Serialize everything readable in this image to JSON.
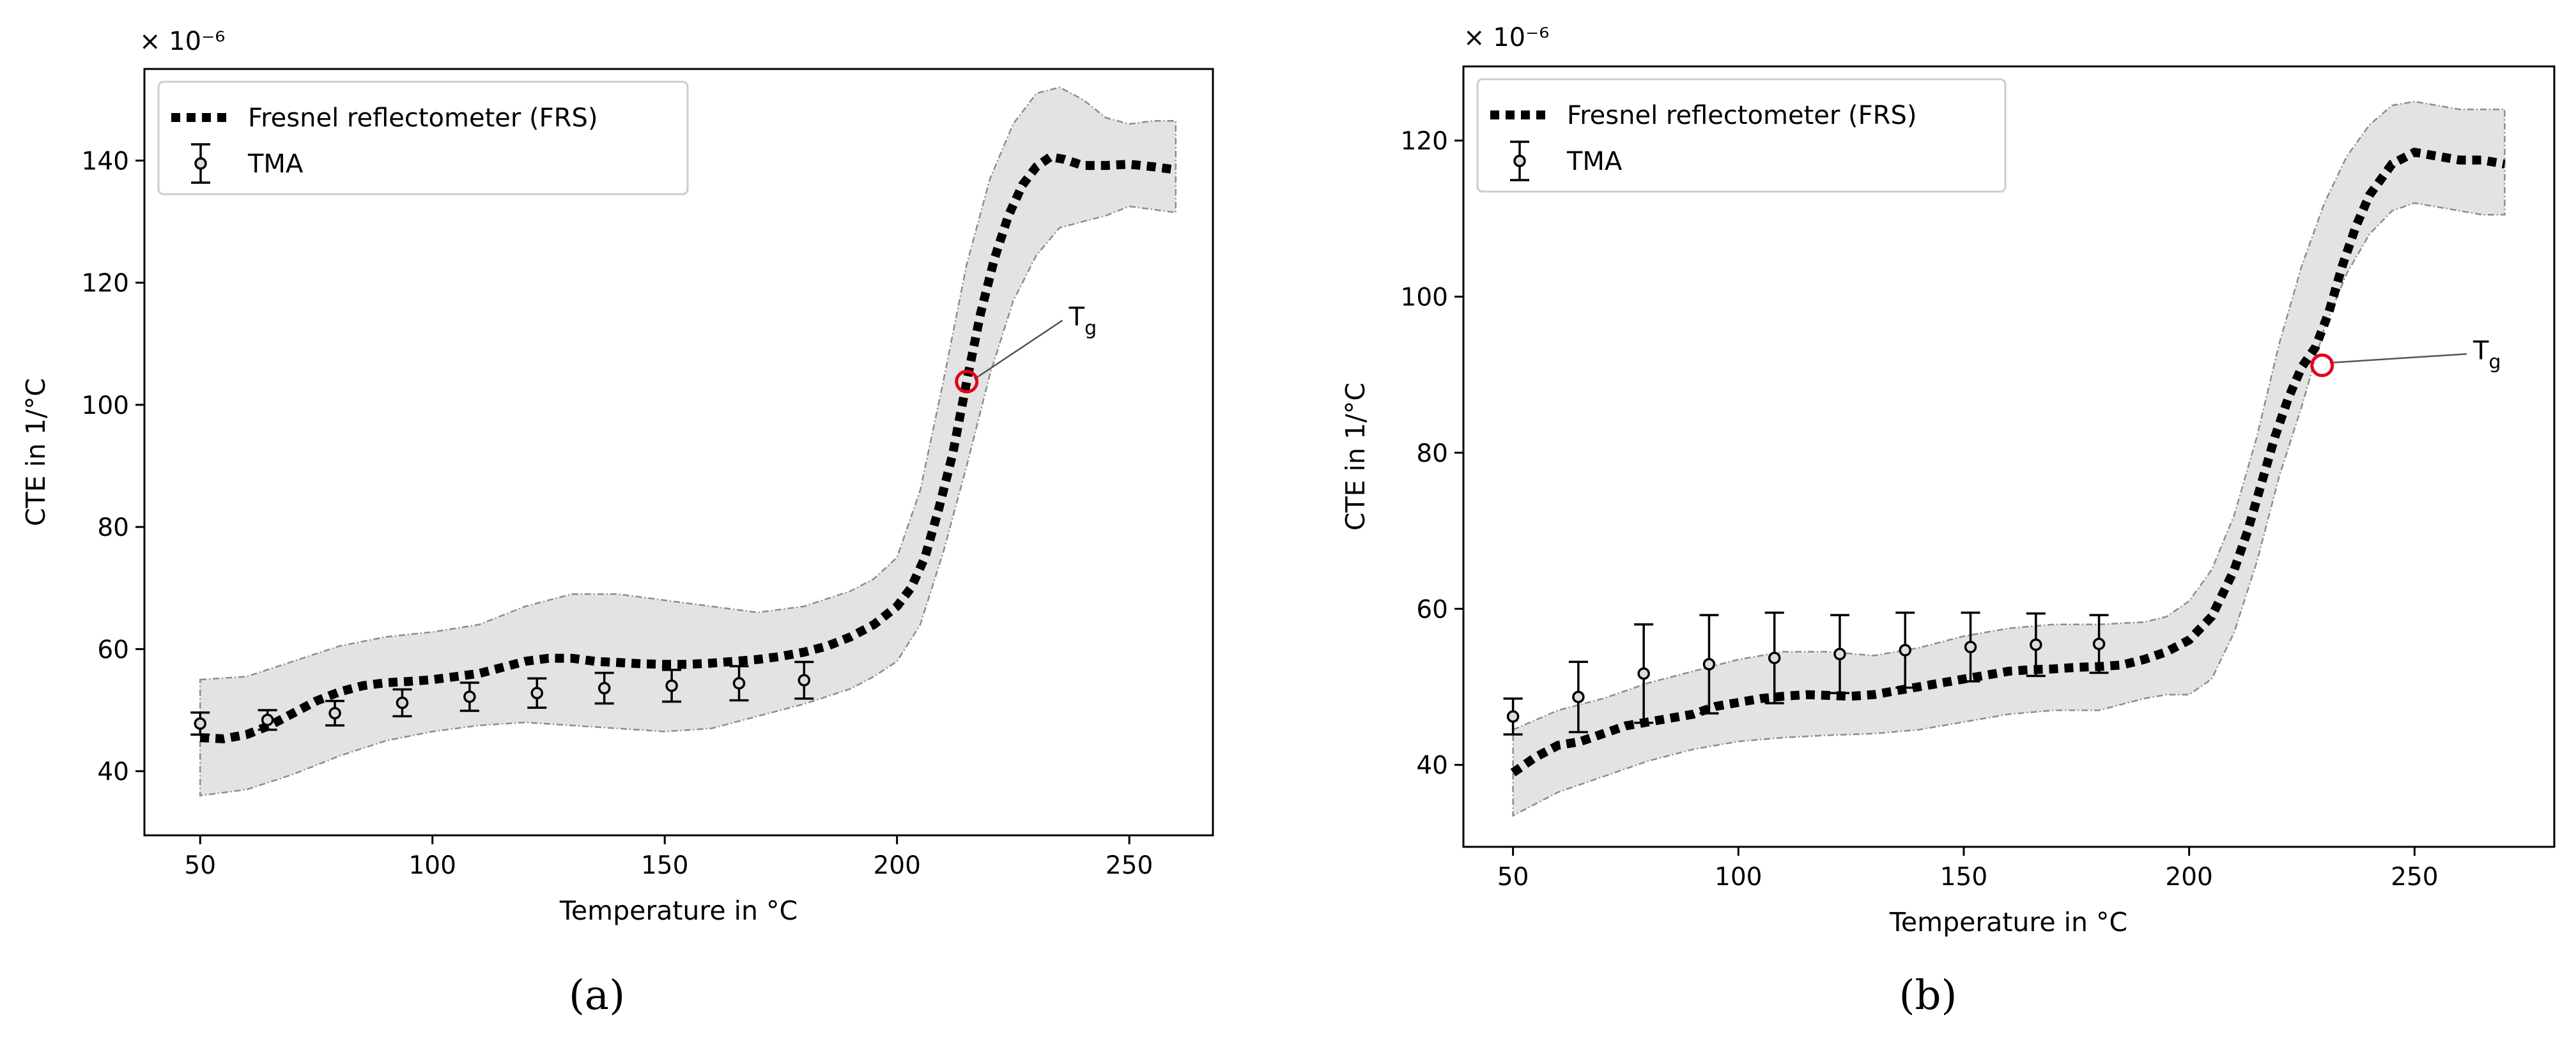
{
  "chart_data": [
    {
      "panel": "a",
      "caption": "(a)",
      "type": "line",
      "xlabel": "Temperature in °C",
      "ylabel": "CTE in 1/°C",
      "scale_label": "× 10⁻⁶",
      "xlim": [
        38,
        268
      ],
      "ylim": [
        29.5,
        155
      ],
      "xticks": [
        50,
        100,
        150,
        200,
        250
      ],
      "yticks": [
        40,
        60,
        80,
        100,
        120,
        140
      ],
      "legend": {
        "position": "top-left",
        "entries": [
          "Fresnel reflectometer (FRS)",
          "TMA"
        ]
      },
      "series": [
        {
          "name": "Fresnel reflectometer (FRS)",
          "style": "dotted",
          "x": [
            50,
            55,
            60,
            65,
            70,
            75,
            80,
            85,
            90,
            95,
            100,
            105,
            110,
            115,
            120,
            125,
            130,
            135,
            140,
            145,
            150,
            155,
            160,
            165,
            170,
            175,
            180,
            185,
            190,
            195,
            200,
            203,
            206,
            209,
            212,
            215,
            218,
            221,
            224,
            227,
            230,
            233,
            236,
            240,
            245,
            250,
            255,
            260
          ],
          "y": [
            45.5,
            45.3,
            46.0,
            47.5,
            49.5,
            51.5,
            53.0,
            54.0,
            54.5,
            54.7,
            55.0,
            55.5,
            56.0,
            57.0,
            58.0,
            58.5,
            58.5,
            58.0,
            57.8,
            57.6,
            57.5,
            57.5,
            57.7,
            58.0,
            58.3,
            58.8,
            59.5,
            60.5,
            62.0,
            64.0,
            67.0,
            70.0,
            75.0,
            83.0,
            92.0,
            103.8,
            115.0,
            124.0,
            131.0,
            136.0,
            139.0,
            140.6,
            140.2,
            139.2,
            139.2,
            139.4,
            139.0,
            138.5
          ]
        },
        {
          "name": "FRS uncertainty band",
          "style": "band",
          "x": [
            50,
            60,
            70,
            80,
            90,
            100,
            110,
            120,
            130,
            140,
            150,
            160,
            170,
            180,
            190,
            195,
            200,
            205,
            210,
            215,
            220,
            225,
            230,
            235,
            240,
            245,
            250,
            255,
            260
          ],
          "upper": [
            55.0,
            55.5,
            58.0,
            60.5,
            62.0,
            62.8,
            64.0,
            67.0,
            69.0,
            69.0,
            68.0,
            67.0,
            66.0,
            67.0,
            69.5,
            71.5,
            75.0,
            86.0,
            104.0,
            123.0,
            137.0,
            146.0,
            151.0,
            152.0,
            150.0,
            147.0,
            146.0,
            146.5,
            146.5
          ],
          "lower": [
            36.0,
            37.0,
            39.5,
            42.5,
            45.0,
            46.5,
            47.5,
            48.0,
            47.5,
            47.0,
            46.5,
            47.0,
            49.0,
            51.0,
            53.5,
            55.5,
            58.0,
            64.0,
            76.0,
            90.0,
            105.0,
            117.0,
            124.5,
            129.0,
            130.0,
            131.0,
            132.5,
            132.0,
            131.5
          ]
        },
        {
          "name": "TMA",
          "style": "errorbar",
          "x": [
            50,
            64.5,
            79,
            93.5,
            108,
            122.5,
            137,
            151.5,
            166,
            180
          ],
          "y": [
            47.8,
            48.4,
            49.5,
            51.2,
            52.2,
            52.8,
            53.6,
            54.0,
            54.4,
            54.9
          ],
          "err": [
            1.8,
            1.6,
            2.0,
            2.2,
            2.3,
            2.4,
            2.5,
            2.6,
            2.8,
            3.0
          ]
        }
      ],
      "annotation": {
        "label": "T",
        "subscript": "g",
        "x": 215,
        "y": 103.8,
        "text_x": 237,
        "text_y": 113
      }
    },
    {
      "panel": "b",
      "caption": "(b)",
      "type": "line",
      "xlabel": "Temperature in °C",
      "ylabel": "CTE in 1/°C",
      "scale_label": "× 10⁻⁶",
      "xlim": [
        39,
        281
      ],
      "ylim": [
        29.5,
        129.5
      ],
      "xticks": [
        50,
        100,
        150,
        200,
        250
      ],
      "yticks": [
        40,
        60,
        80,
        100,
        120
      ],
      "legend": {
        "position": "top-left",
        "entries": [
          "Fresnel reflectometer (FRS)",
          "TMA"
        ]
      },
      "series": [
        {
          "name": "Fresnel reflectometer (FRS)",
          "style": "dotted",
          "x": [
            50,
            55,
            60,
            65,
            70,
            75,
            80,
            85,
            90,
            95,
            100,
            105,
            110,
            115,
            120,
            125,
            130,
            135,
            140,
            145,
            150,
            155,
            160,
            165,
            170,
            175,
            180,
            185,
            190,
            195,
            200,
            205,
            210,
            213,
            216,
            219,
            222,
            225,
            228,
            231,
            234,
            237,
            240,
            245,
            250,
            255,
            260,
            265,
            270
          ],
          "y": [
            39.0,
            41.0,
            42.5,
            43.0,
            44.0,
            45.0,
            45.5,
            46.0,
            46.5,
            47.5,
            48.0,
            48.5,
            48.8,
            49.0,
            48.9,
            48.8,
            49.0,
            49.5,
            50.0,
            50.5,
            51.0,
            51.5,
            52.0,
            52.2,
            52.3,
            52.5,
            52.6,
            52.8,
            53.5,
            54.5,
            56.0,
            59.0,
            65.0,
            70.0,
            76.0,
            82.0,
            87.0,
            91.0,
            93.5,
            98.0,
            104.0,
            109.0,
            113.0,
            117.0,
            118.5,
            118.0,
            117.5,
            117.5,
            117.0
          ]
        },
        {
          "name": "FRS uncertainty band",
          "style": "band",
          "x": [
            50,
            60,
            70,
            80,
            90,
            100,
            110,
            120,
            130,
            140,
            150,
            160,
            170,
            180,
            190,
            195,
            200,
            205,
            210,
            215,
            220,
            225,
            230,
            235,
            240,
            245,
            250,
            255,
            260,
            265,
            270
          ],
          "upper": [
            44.5,
            47.0,
            48.5,
            50.5,
            52.0,
            53.5,
            54.5,
            54.5,
            54.0,
            55.0,
            56.5,
            57.5,
            58.0,
            58.0,
            58.3,
            59.0,
            61.0,
            65.0,
            72.0,
            82.0,
            94.0,
            104.0,
            112.0,
            118.0,
            122.0,
            124.5,
            125.0,
            124.5,
            124.0,
            124.0,
            124.0
          ],
          "lower": [
            33.5,
            36.5,
            38.5,
            40.5,
            42.0,
            43.0,
            43.5,
            43.8,
            44.0,
            44.5,
            45.5,
            46.5,
            47.0,
            47.0,
            48.5,
            49.0,
            49.0,
            51.0,
            57.0,
            66.0,
            77.0,
            86.0,
            96.0,
            103.0,
            108.0,
            111.0,
            112.0,
            111.5,
            111.0,
            110.5,
            110.5
          ]
        },
        {
          "name": "TMA",
          "style": "errorbar",
          "x": [
            50,
            64.5,
            79,
            93.5,
            108,
            122.5,
            137,
            151.5,
            166,
            180
          ],
          "y": [
            46.2,
            48.7,
            51.7,
            52.9,
            53.7,
            54.2,
            54.7,
            55.1,
            55.4,
            55.5
          ],
          "err": [
            2.3,
            4.5,
            6.3,
            6.3,
            5.8,
            5.0,
            4.8,
            4.4,
            4.0,
            3.7
          ]
        }
      ],
      "annotation": {
        "label": "T",
        "subscript": "g",
        "x": 229.5,
        "y": 91.2,
        "text_x": 263,
        "text_y": 92
      }
    }
  ]
}
